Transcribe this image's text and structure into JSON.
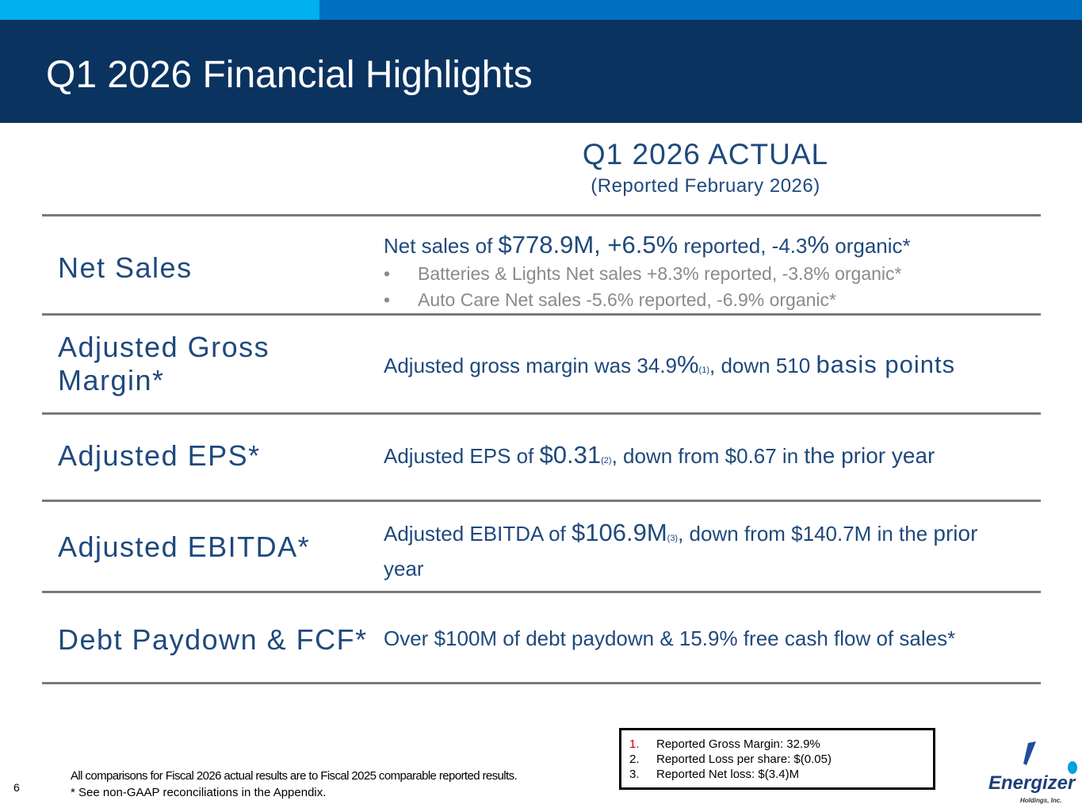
{
  "header": {
    "title": "Q1 2026 Financial Highlights"
  },
  "column": {
    "title": "Q1 2026 ACTUAL",
    "subtitle": "(Reported February 2026)"
  },
  "rows": [
    {
      "label": "Net Sales",
      "parts": [
        "Net sales of ",
        "$778.9M, +6.5%",
        " reported, -4.3",
        "%",
        " organic*"
      ],
      "bullets": [
        "Batteries & Lights Net sales +8.3% reported, -3.8% organic*",
        "Auto Care Net sales -5.6% reported, -6.9% organic*"
      ]
    },
    {
      "label": "Adjusted Gross Margin*",
      "parts": [
        "Adjusted gross margin was 34.9",
        "%",
        "(1)",
        ", down 510 ",
        "basis points"
      ]
    },
    {
      "label": "Adjusted EPS*",
      "parts": [
        "Adjusted EPS of ",
        "$0.31",
        "(2)",
        ", down from $0.67 in ",
        "the prior year"
      ]
    },
    {
      "label": "Adjusted EBITDA*",
      "parts": [
        "Adjusted EBITDA of ",
        "$106.9M",
        "(3)",
        ", down from $140.7M in the ",
        "prior",
        "year"
      ]
    },
    {
      "label": "Debt Paydown & FCF*",
      "parts": [
        "Over $100M of debt paydown & 15.9% free cash flow of sales*"
      ]
    }
  ],
  "bullet_symbol": "•",
  "footnotes": [
    "All comparisons for Fiscal 2026 actual results are to Fiscal 2025 comparable reported results.",
    "* See non-GAAP reconciliations in the Appendix."
  ],
  "page_number": "6",
  "notes": [
    {
      "num": "1.",
      "text": "Reported Gross Margin: 32.9%"
    },
    {
      "num": "2.",
      "text": "Reported Loss per share: $(0.05)"
    },
    {
      "num": "3.",
      "text": "Reported Net loss: $(3.4)M"
    }
  ],
  "logo": {
    "name": "Energizer",
    "sub": "Holdings, Inc."
  }
}
